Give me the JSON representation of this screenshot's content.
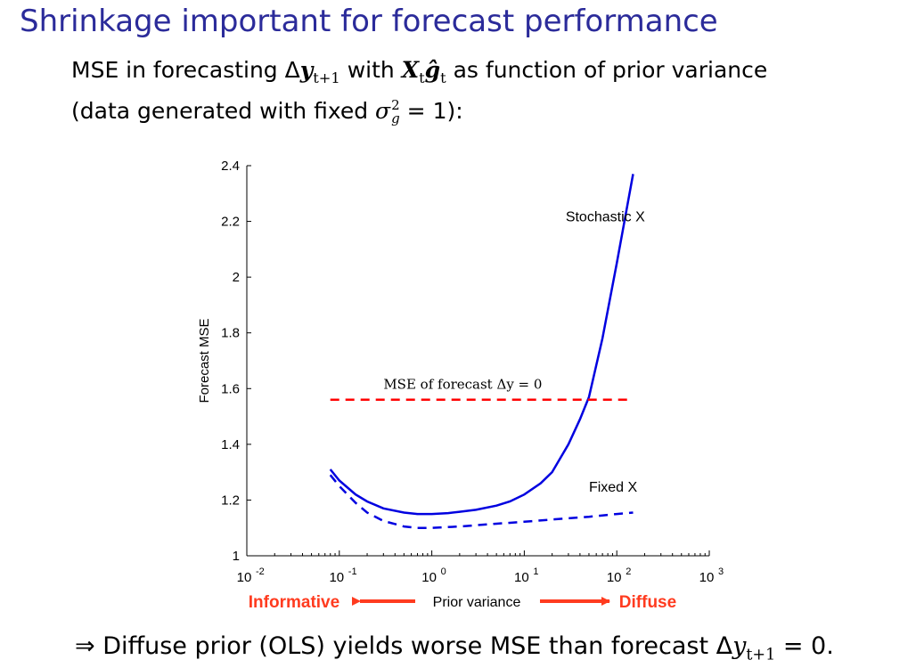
{
  "slide": {
    "title": "Shrinkage important for forecast performance",
    "subtitle_line1_prefix": "MSE in forecasting Δ",
    "subtitle_line1_y": "y",
    "subtitle_line1_ysub": "t+1",
    "subtitle_line1_with": " with ",
    "subtitle_line1_X": "X",
    "subtitle_line1_Xsub": "t",
    "subtitle_line1_g": "ĝ",
    "subtitle_line1_gsub": "t",
    "subtitle_line1_suffix": " as function of prior variance",
    "subtitle_line2_prefix": "(data generated with fixed ",
    "subtitle_line2_sigma": "σ",
    "subtitle_line2_sup": "2",
    "subtitle_line2_sub": "g",
    "subtitle_line2_suffix": " = 1):",
    "footer_prefix": "⇒ Diffuse prior (OLS) yields worse MSE than forecast Δ",
    "footer_y": "y",
    "footer_ysub": "t+1",
    "footer_suffix": " = 0."
  },
  "chart_data": {
    "type": "line",
    "xscale": "log",
    "xlim": [
      0.01,
      1000
    ],
    "ylim": [
      1,
      2.4
    ],
    "ylabel": "Forecast MSE",
    "xlabel": "Prior variance",
    "xlabel_left": "Informative",
    "xlabel_right": "Diffuse",
    "yticks": [
      "1",
      "1.2",
      "1.4",
      "1.6",
      "1.8",
      "2",
      "2.2",
      "2.4"
    ],
    "xticks": [
      {
        "base": "10",
        "exp": "-2"
      },
      {
        "base": "10",
        "exp": "-1"
      },
      {
        "base": "10",
        "exp": "0"
      },
      {
        "base": "10",
        "exp": "1"
      },
      {
        "base": "10",
        "exp": "2"
      },
      {
        "base": "10",
        "exp": "3"
      }
    ],
    "series": [
      {
        "name": "Stochastic X",
        "color": "#0000e0",
        "style": "solid",
        "x": [
          0.08,
          0.1,
          0.15,
          0.2,
          0.3,
          0.5,
          0.7,
          1,
          1.5,
          2,
          3,
          5,
          7,
          10,
          15,
          20,
          30,
          40,
          50,
          70,
          100,
          150
        ],
        "y": [
          1.31,
          1.27,
          1.22,
          1.195,
          1.17,
          1.155,
          1.15,
          1.15,
          1.153,
          1.158,
          1.165,
          1.18,
          1.195,
          1.22,
          1.26,
          1.3,
          1.4,
          1.49,
          1.57,
          1.78,
          2.05,
          2.37
        ]
      },
      {
        "name": "Fixed X",
        "color": "#0000e0",
        "style": "dashed",
        "x": [
          0.08,
          0.1,
          0.15,
          0.2,
          0.3,
          0.5,
          0.7,
          1,
          2,
          5,
          10,
          20,
          50,
          100,
          150
        ],
        "y": [
          1.29,
          1.25,
          1.19,
          1.155,
          1.125,
          1.105,
          1.1,
          1.1,
          1.105,
          1.115,
          1.122,
          1.13,
          1.14,
          1.15,
          1.155
        ]
      },
      {
        "name": "",
        "color": "#ff0000",
        "style": "dashed",
        "x": [
          0.08,
          150
        ],
        "y": [
          1.56,
          1.56
        ]
      }
    ],
    "annotations": [
      {
        "text": "Stochastic X",
        "x": 28,
        "y": 2.2
      },
      {
        "text": "Fixed X",
        "x": 50,
        "y": 1.23
      },
      {
        "text": "MSE of forecast Δy = 0",
        "x": 0.3,
        "y": 1.6
      }
    ],
    "colors": {
      "arrows": "#ff3b1f"
    }
  }
}
